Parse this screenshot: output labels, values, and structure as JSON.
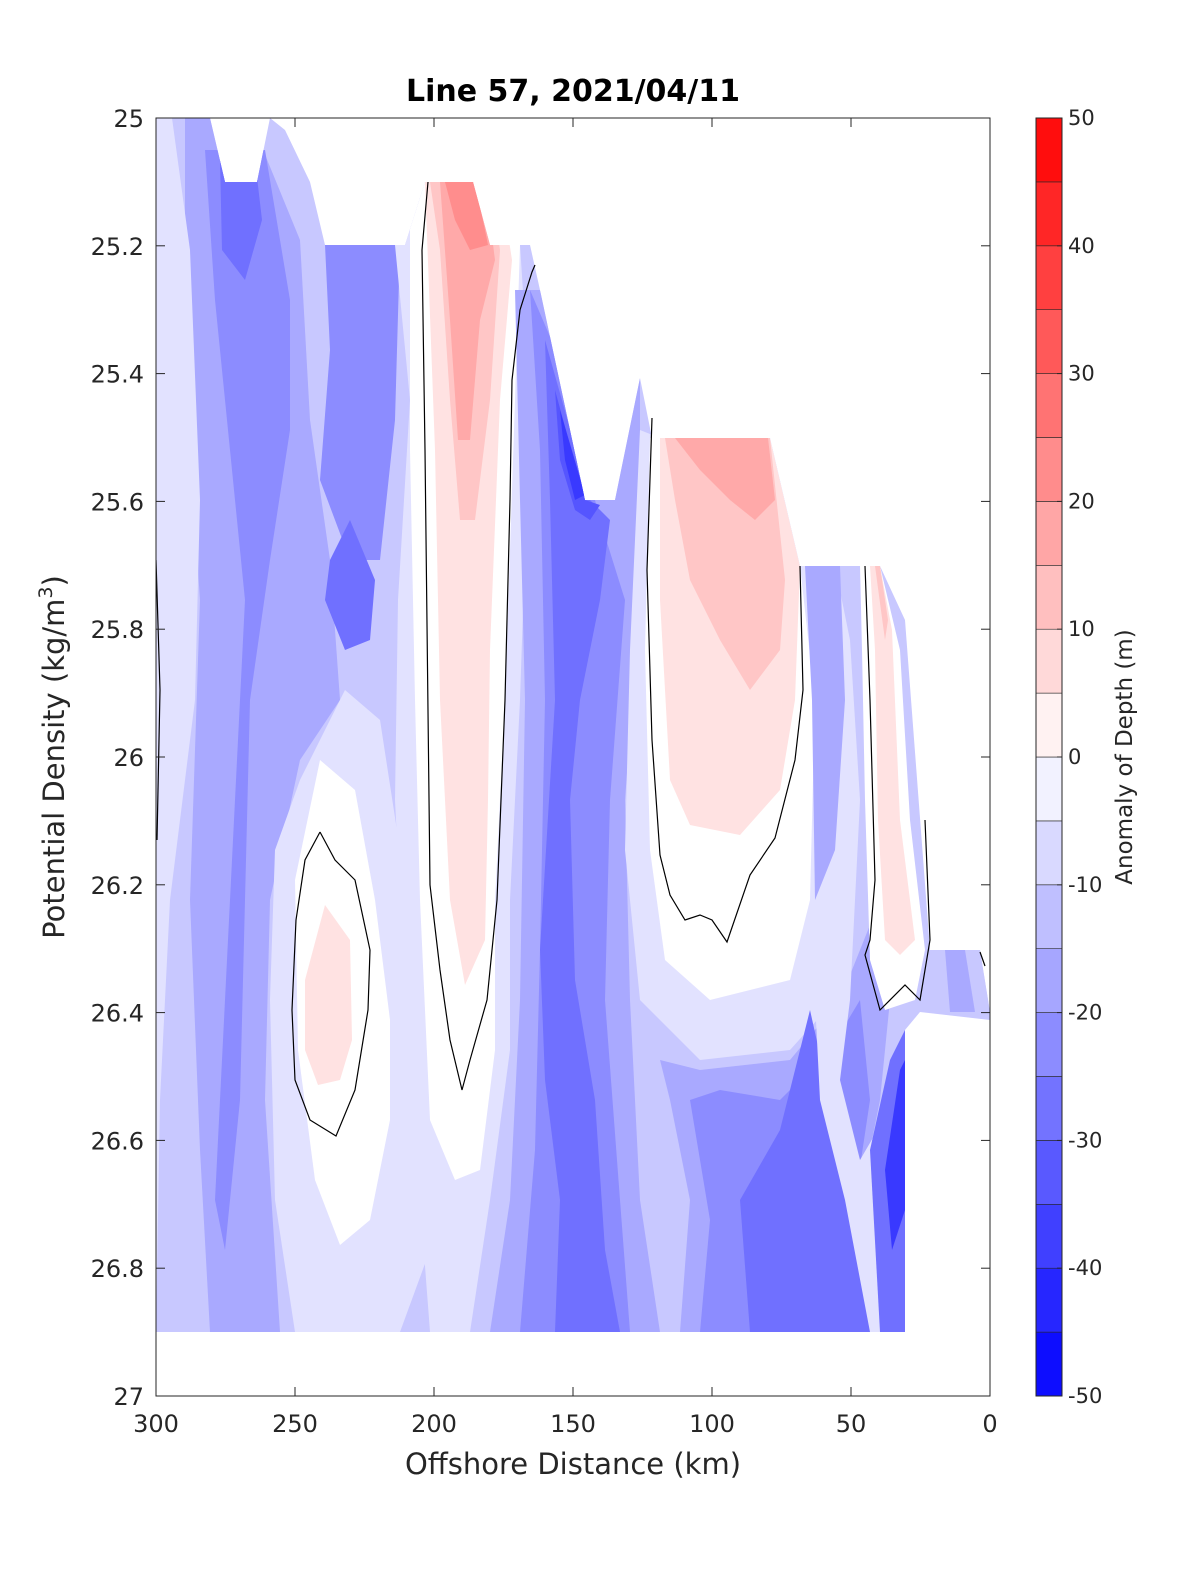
{
  "chart_data": {
    "type": "heatmap",
    "subtype": "filled-contour",
    "title": "Line 57, 2021/04/11",
    "xlabel": "Offshore Distance (km)",
    "ylabel_text": "Potential Density (kg/m",
    "ylabel_sup": "3",
    "ylabel_close": ")",
    "colorbar_label": "Anomaly of Depth (m)",
    "xlim": [
      300,
      0
    ],
    "ylim": [
      25,
      27
    ],
    "y_reversed": true,
    "x_reversed": true,
    "xticks": [
      300,
      250,
      200,
      150,
      100,
      50,
      0
    ],
    "xtick_labels": [
      "300",
      "250",
      "200",
      "150",
      "100",
      "50",
      "0"
    ],
    "yticks": [
      25,
      25.2,
      25.4,
      25.6,
      25.8,
      26,
      26.2,
      26.4,
      26.6,
      26.8,
      27
    ],
    "ytick_labels": [
      "25",
      "25.2",
      "25.4",
      "25.6",
      "25.8",
      "26",
      "26.2",
      "26.4",
      "26.6",
      "26.8",
      "27"
    ],
    "colorbar_ticks": [
      50,
      40,
      30,
      20,
      10,
      0,
      -10,
      -20,
      -30,
      -40,
      -50
    ],
    "colorbar_tick_labels": [
      "50",
      "40",
      "30",
      "20",
      "10",
      "0",
      "-10",
      "-20",
      "-30",
      "-40",
      "-50"
    ],
    "clim": [
      -50,
      50
    ],
    "contour_levels_step": 5,
    "zero_contour_drawn": true,
    "colormap": "blue-white-red",
    "colormap_endpoints": {
      "low": "#0000ff",
      "mid": "#ffffff",
      "high": "#ff0000"
    },
    "grid": false,
    "data_extent": {
      "columns_x": [
        300,
        280,
        265,
        250,
        235,
        220,
        203,
        190,
        175,
        160,
        145,
        130,
        120,
        105,
        92,
        80,
        65,
        50,
        40,
        32,
        20,
        10
      ],
      "top_density": [
        25.0,
        25.0,
        25.1,
        25.0,
        25.2,
        25.2,
        25.1,
        25.1,
        25.2,
        25.25,
        25.6,
        25.5,
        25.5,
        25.5,
        25.5,
        25.5,
        25.7,
        25.7,
        25.7,
        26.2,
        26.3,
        26.3
      ],
      "bottom_density": [
        26.9,
        26.9,
        26.9,
        26.9,
        26.9,
        26.9,
        26.9,
        26.9,
        26.9,
        26.9,
        26.9,
        26.9,
        26.9,
        26.9,
        26.9,
        26.9,
        26.9,
        26.9,
        26.9,
        26.9,
        26.4,
        26.4
      ]
    },
    "features": [
      {
        "name": "nearshore-negative-band",
        "x_range": [
          300,
          215
        ],
        "density_range": [
          25.0,
          26.9
        ],
        "anomaly_m": -25
      },
      {
        "name": "positive-core-240km",
        "x_center": 237,
        "density_range": [
          26.3,
          26.5
        ],
        "anomaly_m": 8
      },
      {
        "name": "positive-tongue-190km",
        "x_range": [
          200,
          175
        ],
        "density_range": [
          25.1,
          26.4
        ],
        "anomaly_m": 27
      },
      {
        "name": "negative-core-145km",
        "x_range": [
          160,
          120
        ],
        "density_range": [
          25.4,
          26.9
        ],
        "anomaly_m": -42
      },
      {
        "name": "positive-lens-95km",
        "x_range": [
          120,
          70
        ],
        "density_range": [
          25.5,
          26.1
        ],
        "anomaly_m": 22
      },
      {
        "name": "negative-deep-80km",
        "x_range": [
          110,
          35
        ],
        "density_range": [
          26.3,
          26.9
        ],
        "anomaly_m": -33
      },
      {
        "name": "positive-strip-38km",
        "x_range": [
          42,
          28
        ],
        "density_range": [
          25.7,
          26.3
        ],
        "anomaly_m": 10
      },
      {
        "name": "strong-negative-35km",
        "x_range": [
          38,
          28
        ],
        "density_range": [
          26.5,
          26.8
        ],
        "anomaly_m": -45
      }
    ]
  }
}
